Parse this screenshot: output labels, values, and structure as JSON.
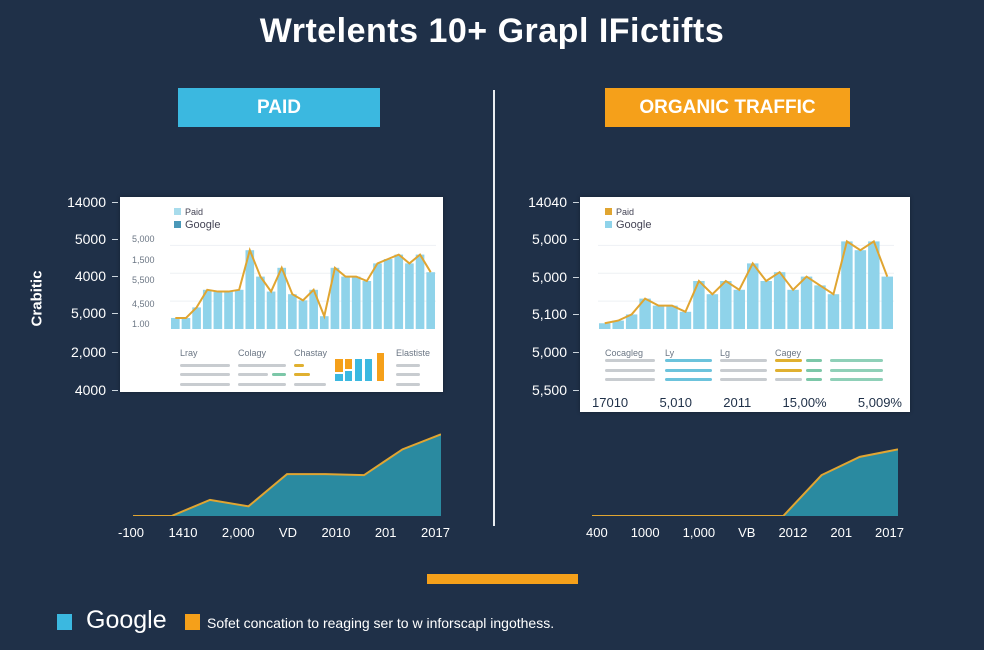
{
  "title": "Wrtelents 10+ Grapl IFictifts",
  "headers": {
    "paid": "PAID",
    "organic": "ORGANIC TRAFFIC"
  },
  "colors": {
    "background": "#1f3048",
    "paid_accent": "#3bb8e0",
    "organic_accent": "#f5a01a",
    "bar_fill": "#8fd3ea",
    "line": "#e0a531",
    "area_fill": "#2a8aa0"
  },
  "left_panel": {
    "y_label": "Crabitic",
    "outer_ticks": [
      "14000",
      "5000",
      "4000",
      "5,000",
      "2,000",
      "4000"
    ],
    "inner_ticks": [
      "5,000",
      "1,500",
      "5,500",
      "4,500",
      "1.00"
    ],
    "legend": [
      "Paid",
      "Google"
    ],
    "table_headers": [
      "Lray",
      "Colagy",
      "Chastay",
      "Elastiste"
    ]
  },
  "right_panel": {
    "outer_ticks": [
      "14040",
      "5,000",
      "5,000",
      "5,100",
      "5,000",
      "5,500"
    ],
    "legend": [
      "Paid",
      "Google"
    ],
    "table_headers": [
      "Cocagleg",
      "Ly",
      "Lg",
      "Cagey"
    ],
    "x_labels": [
      "17010",
      "5,010",
      "2011",
      "15,00%",
      "5,009%"
    ]
  },
  "footer": {
    "legend_google": "Google",
    "legend_text": "Sofet concation to reaging ser to w inforscapl ingothess."
  },
  "chart_data": [
    {
      "type": "bar",
      "title": "PAID",
      "series": [
        {
          "name": "Google",
          "values": [
            8,
            8,
            20,
            40,
            38,
            38,
            40,
            85,
            55,
            38,
            65,
            35,
            28,
            40,
            10,
            65,
            55,
            55,
            50,
            70,
            75,
            80,
            70,
            80,
            60
          ]
        }
      ],
      "line_overlay": true,
      "ylim": [
        0,
        100
      ]
    },
    {
      "type": "bar",
      "title": "ORGANIC TRAFFIC",
      "series": [
        {
          "name": "Google",
          "values": [
            2,
            5,
            12,
            30,
            22,
            22,
            15,
            50,
            35,
            50,
            40,
            70,
            50,
            60,
            40,
            55,
            45,
            35,
            95,
            85,
            95,
            55
          ]
        }
      ],
      "line_overlay": true,
      "ylim": [
        0,
        100
      ]
    },
    {
      "type": "area",
      "x_labels": [
        "-100",
        "1410",
        "2,000",
        "VD",
        "2010",
        "201",
        "2017"
      ],
      "values": [
        0,
        0,
        15,
        9,
        39,
        39,
        38,
        62,
        76
      ],
      "ylim": [
        0,
        80
      ]
    },
    {
      "type": "area",
      "x_labels": [
        "400",
        "1000",
        "1,000",
        "VB",
        "2012",
        "201",
        "2017"
      ],
      "values": [
        0,
        0,
        0,
        0,
        0,
        0,
        38,
        55,
        62
      ],
      "ylim": [
        0,
        80
      ]
    }
  ]
}
